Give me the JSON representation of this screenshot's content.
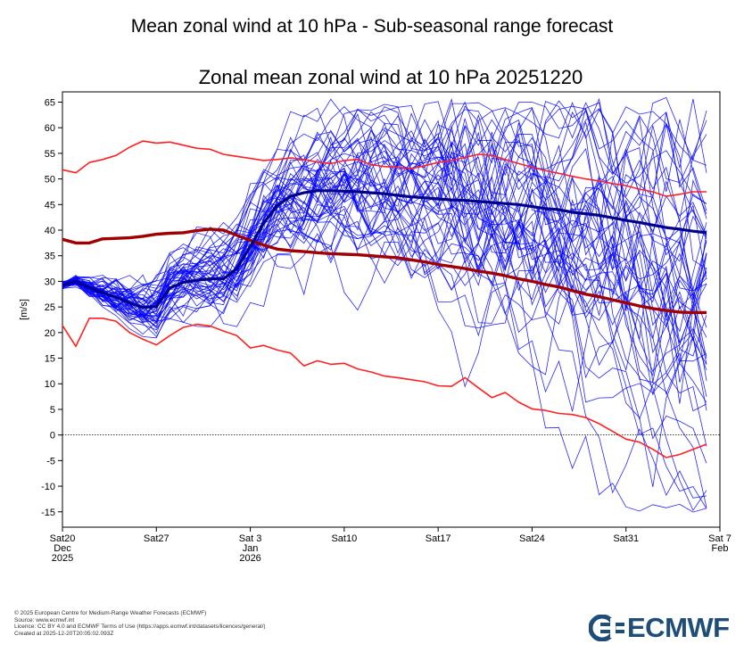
{
  "page_title": "Mean zonal wind at 10 hPa - Sub-seasonal range forecast",
  "footer": {
    "copyright": "© 2025 European Centre for Medium-Range Weather Forecasts (ECMWF)",
    "source": "Source: www.ecmwf.int",
    "licence": "Licence: CC BY 4.0 and ECMWF Terms of Use (https://apps.ecmwf.int/datasets/licences/general/)",
    "created": "Created at 2025-12-20T20:05:02.093Z"
  },
  "logo": {
    "text": "ECMWF",
    "color": "#1f4d7a"
  },
  "chart_data": {
    "type": "line",
    "title": "Zonal mean zonal wind at 10 hPa 20251220",
    "ylabel": "[m/s]",
    "xlabel": "",
    "xlim": [
      0,
      49
    ],
    "ylim": [
      -18,
      67
    ],
    "x_unit": "days since Sat 20 Dec 2025",
    "yticks": [
      65,
      60,
      55,
      50,
      45,
      40,
      35,
      30,
      25,
      20,
      15,
      10,
      5,
      0,
      -5,
      -10,
      -15
    ],
    "xticks": [
      {
        "x": 0,
        "lines": [
          "Sat20",
          "Dec",
          "2025"
        ]
      },
      {
        "x": 7,
        "lines": [
          "Sat27"
        ]
      },
      {
        "x": 14,
        "lines": [
          "Sat 3",
          "Jan",
          "2026"
        ]
      },
      {
        "x": 21,
        "lines": [
          "Sat10"
        ]
      },
      {
        "x": 28,
        "lines": [
          "Sat17"
        ]
      },
      {
        "x": 35,
        "lines": [
          "Sat24"
        ]
      },
      {
        "x": 42,
        "lines": [
          "Sat31"
        ]
      },
      {
        "x": 49,
        "lines": [
          "Sat 7",
          "Feb"
        ]
      }
    ],
    "reference_line": {
      "y": 0,
      "style": "dotted"
    },
    "colors": {
      "ensemble": "#0000ff",
      "ensemble_mean": "#00008b",
      "climate": "#ff2020",
      "climate_mean": "#a00000"
    },
    "series": [
      {
        "name": "Climatological maximum",
        "color": "#ff2020",
        "x": [
          0,
          1,
          2,
          3,
          4,
          5,
          6,
          7,
          8,
          9,
          10,
          11,
          12,
          13,
          14,
          15,
          16,
          17,
          18,
          19,
          20,
          21,
          22,
          23,
          24,
          25,
          26,
          27,
          28,
          29,
          30,
          31,
          32,
          33,
          34,
          35,
          36,
          37,
          38,
          39,
          40,
          41,
          42,
          43,
          44,
          45,
          46,
          47,
          48
        ],
        "y": [
          51.8,
          51.2,
          53.2,
          53.8,
          54.6,
          56.2,
          57.4,
          57,
          57.2,
          56.6,
          56,
          55.8,
          54.8,
          54.4,
          54,
          53.6,
          53.8,
          54.1,
          53.8,
          53.3,
          53,
          53.6,
          53.8,
          52.8,
          52.4,
          52.3,
          52,
          52.6,
          53.2,
          53.6,
          54.2,
          54.8,
          54.6,
          53.8,
          53,
          52.3,
          51.6,
          51.1,
          50.5,
          50,
          49.6,
          49.1,
          48.7,
          48,
          47.5,
          46.6,
          47,
          47.5,
          47.5
        ]
      },
      {
        "name": "Climatological mean",
        "color": "#a00000",
        "width": 3.4,
        "x": [
          0,
          1,
          2,
          3,
          4,
          5,
          6,
          7,
          8,
          9,
          10,
          11,
          12,
          13,
          14,
          15,
          16,
          17,
          18,
          19,
          20,
          21,
          22,
          23,
          24,
          25,
          26,
          27,
          28,
          29,
          30,
          31,
          32,
          33,
          34,
          35,
          36,
          37,
          38,
          39,
          40,
          41,
          42,
          43,
          44,
          45,
          46,
          47,
          48
        ],
        "y": [
          38.2,
          37.5,
          37.5,
          38.3,
          38.4,
          38.5,
          38.8,
          39.2,
          39.4,
          39.5,
          39.9,
          40.2,
          40,
          39,
          38,
          37.1,
          36.3,
          36,
          35.8,
          35.6,
          35.4,
          35.3,
          35.2,
          35,
          34.8,
          34.6,
          34.2,
          33.8,
          33.3,
          32.9,
          32.5,
          32,
          31.6,
          31.1,
          30.5,
          30,
          29.4,
          28.9,
          28.2,
          27.5,
          27,
          26.4,
          25.8,
          25.2,
          24.7,
          24.3,
          24,
          23.9,
          23.9
        ]
      },
      {
        "name": "Climatological minimum",
        "color": "#ff2020",
        "x": [
          0,
          1,
          2,
          3,
          4,
          5,
          6,
          7,
          8,
          9,
          10,
          11,
          12,
          13,
          14,
          15,
          16,
          17,
          18,
          19,
          20,
          21,
          22,
          23,
          24,
          25,
          26,
          27,
          28,
          29,
          30,
          31,
          32,
          33,
          34,
          35,
          36,
          37,
          38,
          39,
          40,
          41,
          42,
          43,
          44,
          45,
          46,
          47,
          48
        ],
        "y": [
          21.4,
          17.3,
          22.8,
          22.8,
          22.2,
          20,
          18.7,
          17.6,
          19.4,
          21,
          21.6,
          21.3,
          20.3,
          19.4,
          17,
          17.5,
          16.6,
          16,
          13.5,
          14.5,
          13.8,
          14,
          12.9,
          12.3,
          11.5,
          11.2,
          10.8,
          10.4,
          9.6,
          9.5,
          11.2,
          9.2,
          7.3,
          8.3,
          6.4,
          5.1,
          4.8,
          4.2,
          4,
          3.4,
          2.2,
          0.7,
          -0.8,
          -1.4,
          -2.8,
          -4.4,
          -3.8,
          -2.8,
          -1.8
        ]
      },
      {
        "name": "Ensemble mean",
        "color": "#00008b",
        "width": 3.2,
        "x": [
          0,
          1,
          2,
          3,
          4,
          5,
          6,
          7,
          8,
          9,
          10,
          11,
          12,
          13,
          14,
          15,
          16,
          17,
          18,
          19,
          20,
          21,
          22,
          23,
          24,
          25,
          26,
          27,
          28,
          29,
          30,
          31,
          32,
          33,
          34,
          35,
          36,
          37,
          38,
          39,
          40,
          41,
          42,
          43,
          44,
          45,
          46,
          47,
          48
        ],
        "y": [
          29.2,
          30,
          28.8,
          27.8,
          26.9,
          25.8,
          24.9,
          25.1,
          28.7,
          29.8,
          30.2,
          30.5,
          30.5,
          32.5,
          36.8,
          41.4,
          44.8,
          46.6,
          47.3,
          47.7,
          47.7,
          47.6,
          47.5,
          47.3,
          47.1,
          46.8,
          46.5,
          46.3,
          46.1,
          45.9,
          45.8,
          45.6,
          45.4,
          45.2,
          45,
          44.6,
          44.2,
          44,
          43.5,
          43.2,
          42.9,
          42.4,
          41.9,
          41.5,
          41,
          40.5,
          40.2,
          39.8,
          39.5
        ]
      }
    ]
  }
}
